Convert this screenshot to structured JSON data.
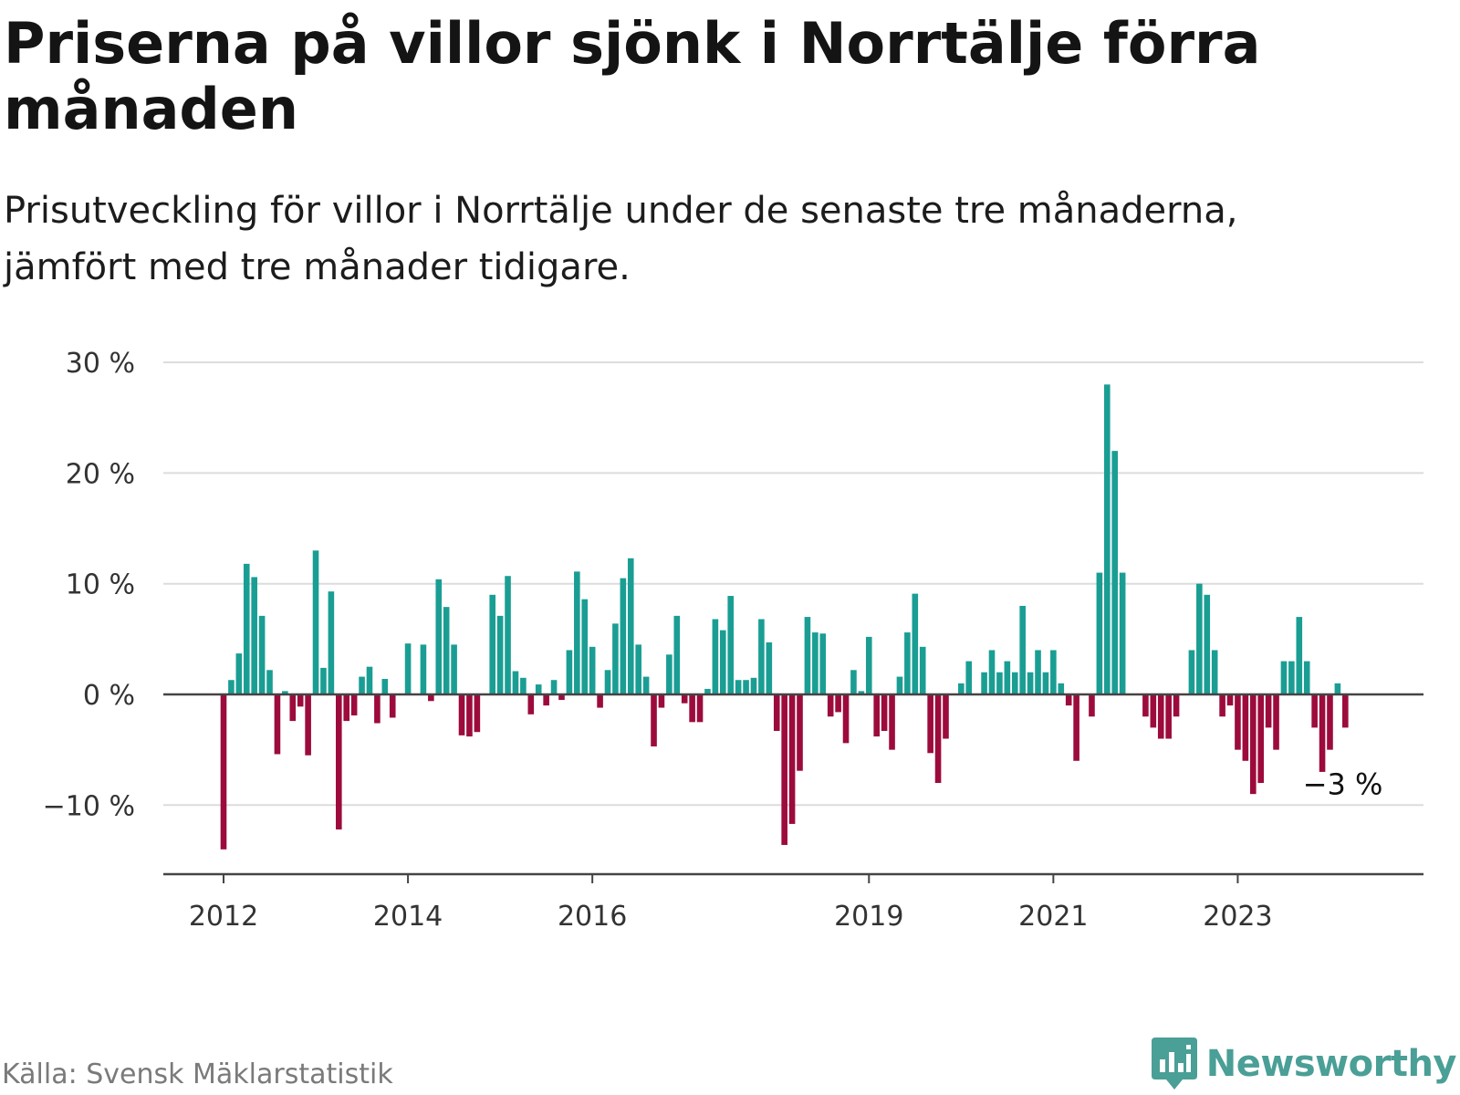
{
  "title": "Priserna på villor sjönk i Norrtälje förra månaden",
  "subtitle": "Prisutveckling för villor i Norrtälje under de senaste tre månaderna, jämfört med tre månader tidigare.",
  "source": "Källa: Svensk Mäklarstatistik",
  "brand": "Newsworthy",
  "colors": {
    "positive": "#1a9e94",
    "negative": "#9c0b3c",
    "grid": "#dcdcdc",
    "axis": "#444444",
    "brand": "#4a9f96"
  },
  "chart_data": {
    "type": "bar",
    "title": "Priserna på villor sjönk i Norrtälje förra månaden",
    "xlabel": "",
    "ylabel": "",
    "ylim": [
      -16,
      30
    ],
    "yticks": [
      30,
      20,
      10,
      0,
      -10
    ],
    "ytick_labels": [
      "30 %",
      "20 %",
      "10 %",
      "0 %",
      "−10 %"
    ],
    "xticks": [
      {
        "label": "2012",
        "index": 0
      },
      {
        "label": "2014",
        "index": 24
      },
      {
        "label": "2016",
        "index": 48
      },
      {
        "label": "2019",
        "index": 84
      },
      {
        "label": "2021",
        "index": 108
      },
      {
        "label": "2023",
        "index": 132
      }
    ],
    "annotation": {
      "label": "−3 %",
      "index": 142
    },
    "start": "2012-01",
    "series": [
      {
        "name": "Prisutveckling (%)",
        "values": [
          -14,
          1.3,
          3.7,
          11.8,
          10.6,
          7.1,
          2.2,
          -5.4,
          0.3,
          -2.4,
          -1.1,
          -5.5,
          13,
          2.4,
          9.3,
          -12.2,
          -2.4,
          -1.9,
          1.6,
          2.5,
          -2.6,
          1.4,
          -2.1,
          0,
          4.6,
          0,
          4.5,
          -0.6,
          10.4,
          7.9,
          4.5,
          -3.7,
          -3.8,
          -3.4,
          0,
          9,
          7.1,
          10.7,
          2.1,
          1.5,
          -1.8,
          0.9,
          -1,
          1.3,
          -0.5,
          4,
          11.1,
          8.6,
          4.3,
          -1.2,
          2.2,
          6.4,
          10.5,
          12.3,
          4.5,
          1.6,
          -4.7,
          -1.2,
          3.6,
          7.1,
          -0.8,
          -2.5,
          -2.5,
          0.5,
          6.8,
          5.8,
          8.9,
          1.3,
          1.3,
          1.5,
          6.8,
          4.7,
          -3.3,
          -13.6,
          -11.7,
          -6.9,
          7,
          5.6,
          5.5,
          -2,
          -1.6,
          -4.4,
          2.2,
          0.3,
          5.2,
          -3.8,
          -3.3,
          -5,
          1.6,
          5.6,
          9.1,
          4.3,
          -5.3,
          -8,
          -4,
          0,
          1,
          3,
          0,
          2,
          4,
          2,
          3,
          2,
          8,
          2,
          4,
          2,
          4,
          1,
          -1,
          -6,
          0,
          -2,
          11,
          28,
          22,
          11,
          0,
          0,
          -2,
          -3,
          -4,
          -4,
          -2,
          0,
          4,
          10,
          9,
          4,
          -2,
          -1,
          -5,
          -6,
          -9,
          -8,
          -3,
          -5,
          3,
          3,
          7,
          3,
          -3,
          -7,
          -5,
          1,
          -3
        ]
      }
    ]
  }
}
